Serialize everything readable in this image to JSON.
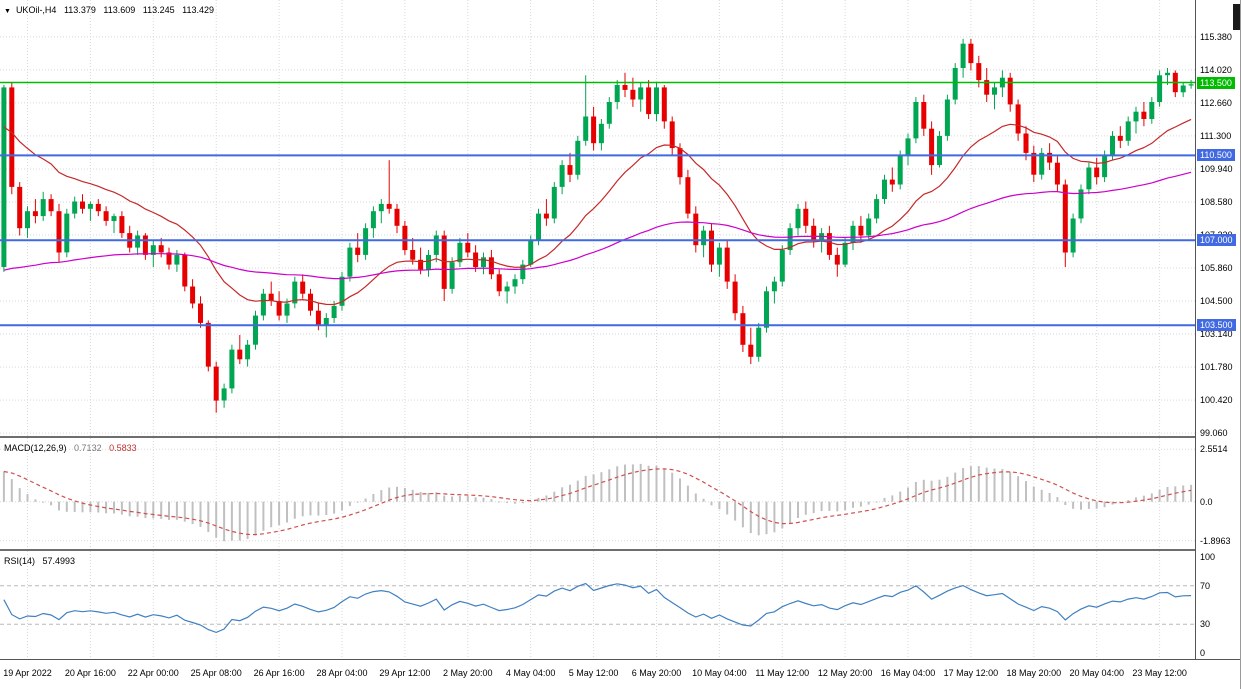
{
  "icons": {
    "collapse_triangle": "▼"
  },
  "colors": {
    "candle_up": "#00A651",
    "candle_down": "#E60000",
    "ma_fast": "#C62828",
    "ma_slow": "#CC00CC",
    "level_green": "#00BB00",
    "level_blue": "#4169E1",
    "macd_histogram": "#C0C0C0",
    "macd_signal": "#D05050",
    "rsi_line": "#4080C0",
    "rsi_level": "#B8B8B8",
    "grid": "#D9D9D9"
  },
  "chart_data": {
    "type": "candlestick",
    "symbol": "UKOil-",
    "timeframe": "H4",
    "title": "UKOil-,H4",
    "ohlc_display": {
      "open": "113.379",
      "high": "113.609",
      "low": "113.245",
      "close": "113.429"
    },
    "price_min": 98.94,
    "price_max": 116.9,
    "y_ticks": [
      "115.380",
      "114.020",
      "112.660",
      "111.300",
      "109.940",
      "108.580",
      "107.220",
      "105.860",
      "104.500",
      "103.140",
      "101.780",
      "100.420",
      "99.060"
    ],
    "x_ticks": [
      {
        "i": 3,
        "label": "19 Apr 2022"
      },
      {
        "i": 11,
        "label": "20 Apr 16:00"
      },
      {
        "i": 19,
        "label": "22 Apr 00:00"
      },
      {
        "i": 27,
        "label": "25 Apr 08:00"
      },
      {
        "i": 35,
        "label": "26 Apr 16:00"
      },
      {
        "i": 43,
        "label": "28 Apr 04:00"
      },
      {
        "i": 51,
        "label": "29 Apr 12:00"
      },
      {
        "i": 59,
        "label": "2 May 20:00"
      },
      {
        "i": 67,
        "label": "4 May 04:00"
      },
      {
        "i": 75,
        "label": "5 May 12:00"
      },
      {
        "i": 83,
        "label": "6 May 20:00"
      },
      {
        "i": 91,
        "label": "10 May 04:00"
      },
      {
        "i": 99,
        "label": "11 May 12:00"
      },
      {
        "i": 107,
        "label": "12 May 20:00"
      },
      {
        "i": 115,
        "label": "16 May 04:00"
      },
      {
        "i": 123,
        "label": "17 May 12:00"
      },
      {
        "i": 131,
        "label": "18 May 20:00"
      },
      {
        "i": 139,
        "label": "20 May 04:00"
      },
      {
        "i": 147,
        "label": "23 May 12:00"
      }
    ],
    "levels": [
      {
        "value": 113.5,
        "label": "113.500",
        "color": "#00BB00",
        "width": 1.5
      },
      {
        "value": 110.5,
        "label": "110.500",
        "color": "#4169E1",
        "width": 2
      },
      {
        "value": 107.0,
        "label": "107.000",
        "color": "#4169E1",
        "width": 2
      },
      {
        "value": 103.5,
        "label": "103.500",
        "color": "#4169E1",
        "width": 2
      }
    ],
    "ma_fast": {
      "period": 20,
      "seed": 111.5
    },
    "ma_slow": {
      "period": 90,
      "seed": 105.6
    },
    "candles": [
      [
        105.9,
        113.4,
        105.7,
        113.3
      ],
      [
        113.3,
        113.5,
        108.9,
        109.2
      ],
      [
        109.2,
        109.4,
        107.2,
        107.5
      ],
      [
        107.5,
        108.4,
        107.1,
        108.2
      ],
      [
        108.2,
        108.7,
        107.7,
        108.0
      ],
      [
        108.0,
        109.0,
        107.8,
        108.7
      ],
      [
        108.7,
        108.9,
        108.0,
        108.2
      ],
      [
        108.2,
        108.5,
        106.1,
        106.5
      ],
      [
        106.5,
        108.3,
        106.3,
        108.1
      ],
      [
        108.1,
        108.8,
        107.9,
        108.6
      ],
      [
        108.6,
        108.9,
        108.1,
        108.3
      ],
      [
        108.3,
        108.6,
        107.8,
        108.5
      ],
      [
        108.5,
        108.7,
        108.0,
        108.2
      ],
      [
        108.2,
        108.4,
        107.6,
        107.8
      ],
      [
        107.8,
        108.1,
        107.3,
        108.0
      ],
      [
        108.0,
        108.2,
        107.1,
        107.3
      ],
      [
        107.3,
        107.6,
        106.5,
        106.7
      ],
      [
        106.7,
        107.4,
        106.4,
        107.2
      ],
      [
        107.2,
        107.3,
        106.2,
        106.4
      ],
      [
        106.4,
        107.0,
        105.9,
        106.8
      ],
      [
        106.8,
        107.1,
        106.3,
        106.5
      ],
      [
        106.5,
        106.7,
        105.8,
        106.0
      ],
      [
        106.0,
        106.6,
        105.7,
        106.4
      ],
      [
        106.4,
        106.5,
        104.9,
        105.1
      ],
      [
        105.1,
        105.4,
        104.2,
        104.4
      ],
      [
        104.4,
        104.7,
        103.4,
        103.6
      ],
      [
        103.6,
        103.7,
        101.6,
        101.8
      ],
      [
        101.8,
        102.0,
        99.9,
        100.4
      ],
      [
        100.4,
        101.1,
        100.1,
        100.9
      ],
      [
        100.9,
        102.7,
        100.7,
        102.5
      ],
      [
        102.5,
        103.1,
        101.9,
        102.1
      ],
      [
        102.1,
        102.9,
        101.8,
        102.7
      ],
      [
        102.7,
        104.1,
        102.5,
        103.9
      ],
      [
        103.9,
        105.0,
        103.7,
        104.8
      ],
      [
        104.8,
        105.3,
        104.3,
        104.5
      ],
      [
        104.5,
        104.9,
        103.7,
        103.9
      ],
      [
        103.9,
        104.6,
        103.6,
        104.4
      ],
      [
        104.4,
        105.5,
        104.2,
        105.3
      ],
      [
        105.3,
        105.6,
        104.6,
        104.8
      ],
      [
        104.8,
        105.0,
        103.9,
        104.1
      ],
      [
        104.1,
        104.4,
        103.3,
        103.5
      ],
      [
        103.5,
        104.0,
        103.0,
        103.8
      ],
      [
        103.8,
        104.5,
        103.6,
        104.3
      ],
      [
        104.3,
        105.7,
        104.1,
        105.5
      ],
      [
        105.5,
        106.9,
        105.3,
        106.7
      ],
      [
        106.7,
        107.3,
        106.1,
        106.4
      ],
      [
        106.4,
        107.7,
        106.2,
        107.5
      ],
      [
        107.5,
        108.4,
        107.1,
        108.2
      ],
      [
        108.2,
        108.7,
        107.7,
        108.5
      ],
      [
        108.5,
        110.3,
        108.1,
        108.3
      ],
      [
        108.3,
        108.5,
        107.3,
        107.6
      ],
      [
        107.6,
        107.8,
        106.4,
        106.6
      ],
      [
        106.6,
        107.1,
        106.0,
        106.2
      ],
      [
        106.2,
        106.7,
        105.6,
        105.8
      ],
      [
        105.8,
        106.6,
        105.5,
        106.4
      ],
      [
        106.4,
        107.4,
        106.1,
        107.2
      ],
      [
        107.2,
        107.4,
        104.5,
        105.0
      ],
      [
        105.0,
        106.3,
        104.8,
        106.1
      ],
      [
        106.1,
        107.1,
        105.9,
        106.9
      ],
      [
        106.9,
        107.3,
        106.3,
        106.5
      ],
      [
        106.5,
        106.8,
        105.7,
        105.9
      ],
      [
        105.9,
        106.5,
        105.6,
        106.3
      ],
      [
        106.3,
        106.6,
        105.4,
        105.6
      ],
      [
        105.6,
        105.8,
        104.7,
        104.9
      ],
      [
        104.9,
        105.3,
        104.4,
        105.1
      ],
      [
        105.1,
        105.6,
        104.8,
        105.4
      ],
      [
        105.4,
        106.2,
        105.2,
        106.0
      ],
      [
        106.0,
        107.2,
        105.9,
        107.0
      ],
      [
        107.0,
        108.3,
        106.8,
        108.1
      ],
      [
        108.1,
        108.7,
        107.6,
        107.9
      ],
      [
        107.9,
        109.4,
        107.7,
        109.2
      ],
      [
        109.2,
        110.3,
        108.9,
        110.1
      ],
      [
        110.1,
        110.6,
        109.4,
        109.7
      ],
      [
        109.7,
        111.3,
        109.5,
        111.1
      ],
      [
        111.1,
        113.8,
        110.9,
        112.1
      ],
      [
        112.1,
        112.5,
        110.7,
        111.0
      ],
      [
        111.0,
        112.0,
        110.7,
        111.8
      ],
      [
        111.8,
        112.9,
        111.6,
        112.7
      ],
      [
        112.7,
        113.6,
        112.4,
        113.4
      ],
      [
        113.4,
        113.9,
        112.9,
        113.2
      ],
      [
        113.2,
        113.7,
        112.5,
        112.8
      ],
      [
        112.8,
        113.5,
        112.3,
        113.3
      ],
      [
        113.3,
        113.6,
        112.0,
        112.2
      ],
      [
        112.2,
        113.5,
        111.9,
        113.3
      ],
      [
        113.3,
        113.4,
        111.6,
        111.9
      ],
      [
        111.9,
        112.1,
        110.5,
        110.8
      ],
      [
        110.8,
        111.0,
        109.3,
        109.6
      ],
      [
        109.6,
        109.9,
        107.9,
        108.1
      ],
      [
        108.1,
        108.4,
        106.5,
        106.8
      ],
      [
        106.8,
        107.6,
        106.3,
        107.4
      ],
      [
        107.4,
        107.7,
        105.7,
        106.0
      ],
      [
        106.0,
        106.9,
        105.5,
        106.7
      ],
      [
        106.7,
        107.0,
        105.0,
        105.3
      ],
      [
        105.3,
        105.6,
        103.7,
        104.0
      ],
      [
        104.0,
        104.3,
        102.4,
        102.7
      ],
      [
        102.7,
        103.4,
        101.9,
        102.2
      ],
      [
        102.2,
        103.6,
        102.0,
        103.4
      ],
      [
        103.4,
        105.1,
        103.2,
        104.9
      ],
      [
        104.9,
        105.5,
        104.4,
        105.3
      ],
      [
        105.3,
        106.8,
        105.1,
        106.6
      ],
      [
        106.6,
        107.7,
        106.4,
        107.5
      ],
      [
        107.5,
        108.5,
        107.2,
        108.3
      ],
      [
        108.3,
        108.6,
        107.3,
        107.6
      ],
      [
        107.6,
        107.9,
        106.7,
        107.0
      ],
      [
        107.0,
        107.5,
        106.5,
        107.3
      ],
      [
        107.3,
        107.6,
        106.2,
        106.4
      ],
      [
        106.4,
        106.7,
        105.5,
        106.0
      ],
      [
        106.0,
        107.1,
        105.9,
        106.9
      ],
      [
        106.9,
        107.8,
        106.6,
        107.6
      ],
      [
        107.6,
        108.0,
        106.9,
        107.2
      ],
      [
        107.2,
        108.1,
        107.0,
        107.9
      ],
      [
        107.9,
        108.9,
        107.7,
        108.7
      ],
      [
        108.7,
        109.7,
        108.5,
        109.5
      ],
      [
        109.5,
        110.0,
        109.0,
        109.3
      ],
      [
        109.3,
        110.7,
        109.1,
        110.5
      ],
      [
        110.5,
        111.4,
        110.1,
        111.2
      ],
      [
        111.2,
        112.9,
        111.0,
        112.7
      ],
      [
        112.7,
        113.0,
        111.3,
        111.6
      ],
      [
        111.6,
        111.9,
        109.7,
        110.1
      ],
      [
        110.1,
        111.5,
        110.0,
        111.3
      ],
      [
        111.3,
        113.0,
        111.1,
        112.8
      ],
      [
        112.8,
        114.3,
        112.6,
        114.1
      ],
      [
        114.1,
        115.3,
        113.7,
        115.1
      ],
      [
        115.1,
        115.3,
        114.0,
        114.3
      ],
      [
        114.3,
        114.6,
        113.3,
        113.6
      ],
      [
        113.6,
        114.1,
        112.7,
        113.0
      ],
      [
        113.0,
        113.5,
        112.4,
        113.3
      ],
      [
        113.3,
        114.0,
        112.9,
        113.7
      ],
      [
        113.7,
        113.9,
        112.3,
        112.6
      ],
      [
        112.6,
        112.8,
        111.1,
        111.4
      ],
      [
        111.4,
        111.7,
        110.3,
        110.6
      ],
      [
        110.6,
        110.9,
        109.4,
        109.7
      ],
      [
        109.7,
        110.8,
        109.5,
        110.6
      ],
      [
        110.6,
        111.0,
        109.9,
        110.2
      ],
      [
        110.2,
        110.5,
        109.0,
        109.3
      ],
      [
        109.3,
        109.5,
        105.9,
        106.5
      ],
      [
        106.5,
        108.1,
        106.3,
        107.9
      ],
      [
        107.9,
        109.3,
        107.7,
        109.1
      ],
      [
        109.1,
        110.2,
        108.9,
        110.0
      ],
      [
        110.0,
        110.4,
        109.3,
        109.6
      ],
      [
        109.6,
        110.7,
        109.4,
        110.5
      ],
      [
        110.5,
        111.5,
        110.3,
        111.3
      ],
      [
        111.3,
        111.7,
        110.8,
        111.1
      ],
      [
        111.1,
        112.1,
        110.9,
        111.9
      ],
      [
        111.9,
        112.5,
        111.4,
        112.3
      ],
      [
        112.3,
        112.7,
        111.7,
        112.0
      ],
      [
        112.0,
        112.9,
        111.8,
        112.7
      ],
      [
        112.7,
        114.0,
        112.5,
        113.8
      ],
      [
        113.8,
        114.1,
        113.4,
        113.9
      ],
      [
        113.9,
        114.0,
        112.9,
        113.1
      ],
      [
        113.1,
        113.5,
        112.9,
        113.38
      ],
      [
        113.379,
        113.609,
        113.245,
        113.429
      ]
    ],
    "macd": {
      "title": "MACD(12,26,9)",
      "value_main": "0.7132",
      "value_signal": "0.5833",
      "ema_fast_period": 12,
      "ema_slow_period": 26,
      "signal_period": 9,
      "ema_fast_seed": 112.3,
      "ema_slow_seed": 110.8,
      "scale_max": 3.1,
      "scale_min": -2.3,
      "ticks": [
        {
          "v": 2.5514,
          "label": "2.5514"
        },
        {
          "v": 0,
          "label": "0.0"
        },
        {
          "v": -1.8963,
          "label": "-1.8963"
        }
      ]
    },
    "rsi": {
      "title": "RSI(14)",
      "value": "57.4993",
      "period": 14,
      "seed_gain": 0.45,
      "seed_loss": 0.36,
      "levels": [
        70,
        30
      ],
      "ticks": [
        {
          "v": 100,
          "label": "100"
        },
        {
          "v": 70,
          "label": "70"
        },
        {
          "v": 30,
          "label": "30"
        },
        {
          "v": 0,
          "label": "0"
        }
      ]
    }
  }
}
